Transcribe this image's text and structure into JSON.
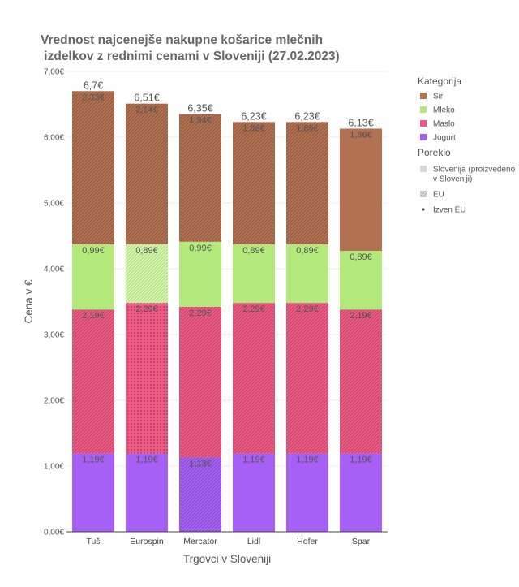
{
  "chart_data": {
    "type": "bar",
    "stacked": true,
    "title_lines": [
      "Vrednost najcenejše nakupne košarice mlečnih",
      " izdelkov z rednimi cenami v Sloveniji (27.02.2023)"
    ],
    "xlabel": "Trgovci v Sloveniji",
    "ylabel": "Cena v €",
    "ylim": [
      0,
      7
    ],
    "y_ticks": [
      {
        "value": 0,
        "label": "0,00€"
      },
      {
        "value": 1,
        "label": "1,00€"
      },
      {
        "value": 2,
        "label": "2,00€"
      },
      {
        "value": 3,
        "label": "3,00€"
      },
      {
        "value": 4,
        "label": "4,00€"
      },
      {
        "value": 5,
        "label": "5,00€"
      },
      {
        "value": 6,
        "label": "6,00€"
      },
      {
        "value": 7,
        "label": "7,00€"
      }
    ],
    "grid": true,
    "legend_position": "right",
    "categories": [
      "Tuš",
      "Eurospin",
      "Mercator",
      "Lidl",
      "Hofer",
      "Spar"
    ],
    "totals": [
      6.7,
      6.51,
      6.35,
      6.23,
      6.23,
      6.13
    ],
    "total_labels": [
      "6,7€",
      "6,51€",
      "6,35€",
      "6,23€",
      "6,23€",
      "6,13€"
    ],
    "series": [
      {
        "name": "Jogurt",
        "color": "#a760f5",
        "values": [
          1.19,
          1.19,
          1.13,
          1.19,
          1.19,
          1.19
        ],
        "labels": [
          "1,19€",
          "1,19€",
          "1,13€",
          "1,19€",
          "1,19€",
          "1,19€"
        ],
        "origin": [
          "Slovenija",
          "Slovenija",
          "EU",
          "Slovenija",
          "Slovenija",
          "Slovenija"
        ]
      },
      {
        "name": "Maslo",
        "color": "#ee5a83",
        "values": [
          2.19,
          2.29,
          2.29,
          2.29,
          2.29,
          2.19
        ],
        "labels": [
          "2,19€",
          "2,29€",
          "2,29€",
          "2,29€",
          "2,29€",
          "2,19€"
        ],
        "origin": [
          "EU",
          "Izven EU",
          "EU",
          "EU",
          "EU",
          "EU"
        ]
      },
      {
        "name": "Mleko",
        "color": "#b3e87a",
        "values": [
          0.99,
          0.89,
          0.99,
          0.89,
          0.89,
          0.89
        ],
        "labels": [
          "0,99€",
          "0,89€",
          "0,99€",
          "0,89€",
          "0,89€",
          "0,89€"
        ],
        "origin": [
          "Slovenija",
          "EU",
          "Slovenija",
          "Slovenija",
          "Slovenija",
          "Slovenija"
        ]
      },
      {
        "name": "Sir",
        "color": "#b27151",
        "values": [
          2.33,
          2.14,
          1.94,
          1.86,
          1.86,
          1.86
        ],
        "labels": [
          "2,33€",
          "2,14€",
          "1,94€",
          "1,86€",
          "1,86€",
          "1,86€"
        ],
        "origin": [
          "EU",
          "EU",
          "EU",
          "EU",
          "EU",
          "Slovenija"
        ]
      }
    ],
    "legend": {
      "category_title": "Kategorija",
      "category_items": [
        {
          "name": "Sir",
          "color": "#b27151"
        },
        {
          "name": "Mleko",
          "color": "#b3e87a"
        },
        {
          "name": "Maslo",
          "color": "#ee5a83"
        },
        {
          "name": "Jogurt",
          "color": "#a760f5"
        }
      ],
      "origin_title": "Poreklo",
      "origin_items": [
        {
          "key": "Slovenija",
          "lines": [
            "Slovenija (proizvedeno",
            "v Sloveniji)"
          ]
        },
        {
          "key": "EU",
          "lines": [
            "EU"
          ]
        },
        {
          "key": "Izven EU",
          "lines": [
            "Izven EU"
          ]
        }
      ]
    }
  }
}
